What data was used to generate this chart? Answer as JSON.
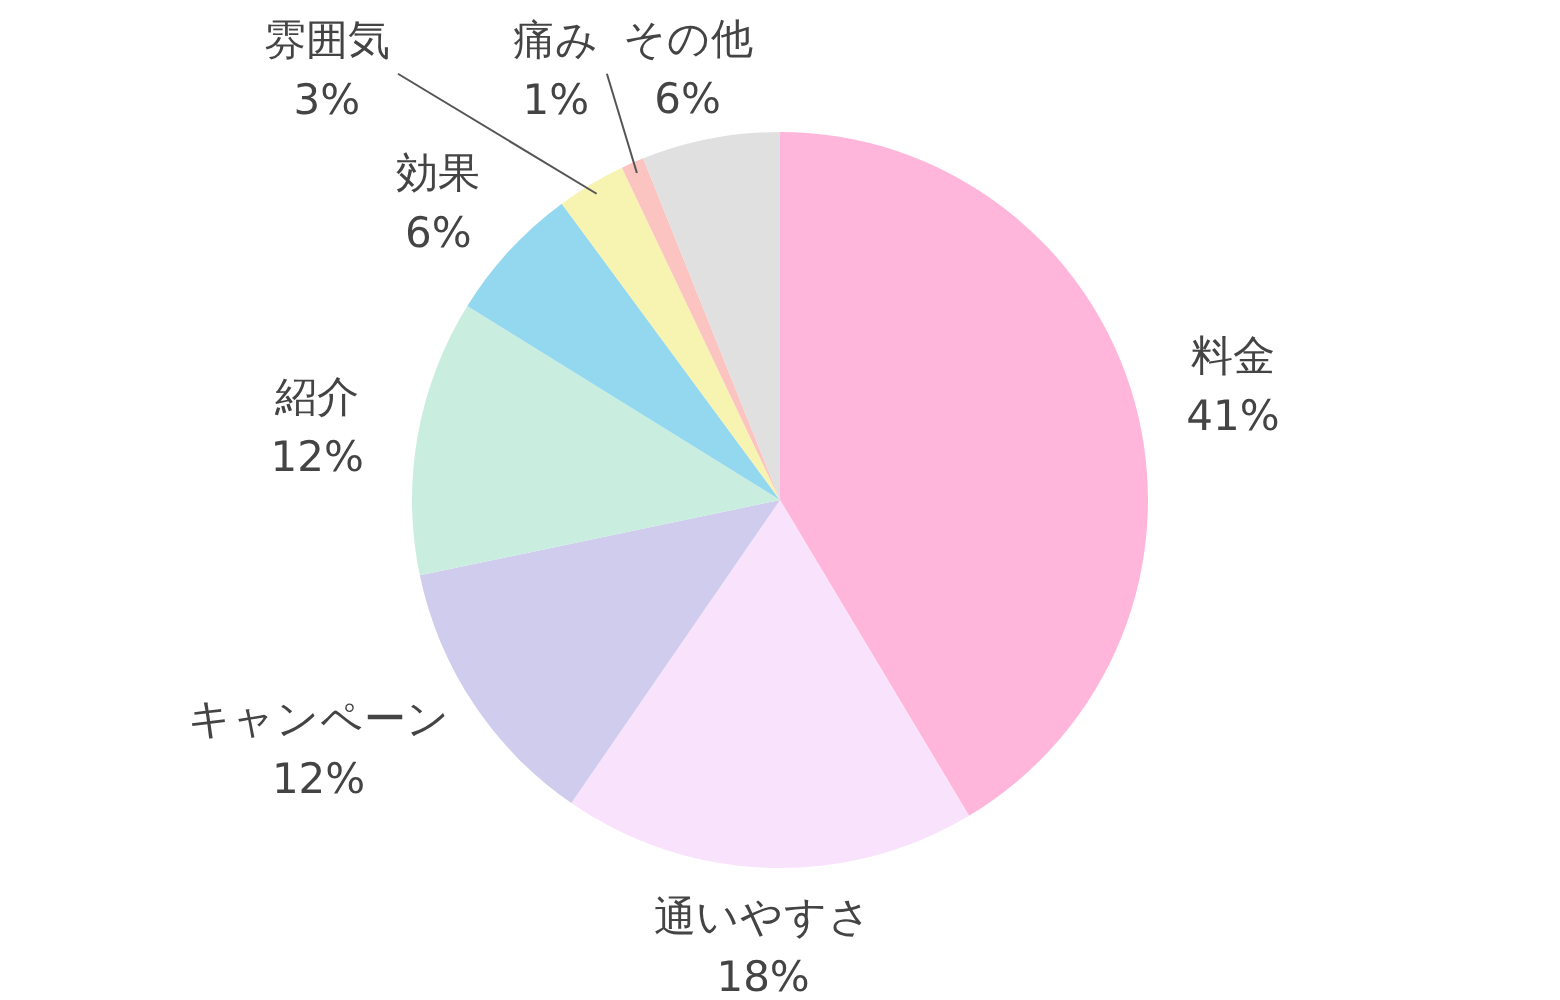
{
  "chart_data": {
    "type": "pie",
    "categories": [
      "料金",
      "通いやすさ",
      "キャンペーン",
      "紹介",
      "効果",
      "雰囲気",
      "痛み",
      "その他"
    ],
    "values": [
      41,
      18,
      12,
      12,
      6,
      3,
      1,
      6
    ],
    "value_labels": [
      "41%",
      "18%",
      "12%",
      "12%",
      "6%",
      "3%",
      "1%",
      "6%"
    ],
    "colors": [
      "#ffb6da",
      "#f9e2fb",
      "#cfcced",
      "#c9eedf",
      "#93d8ee",
      "#f7f3b0",
      "#fbc4c0",
      "#e0e0e0"
    ]
  }
}
